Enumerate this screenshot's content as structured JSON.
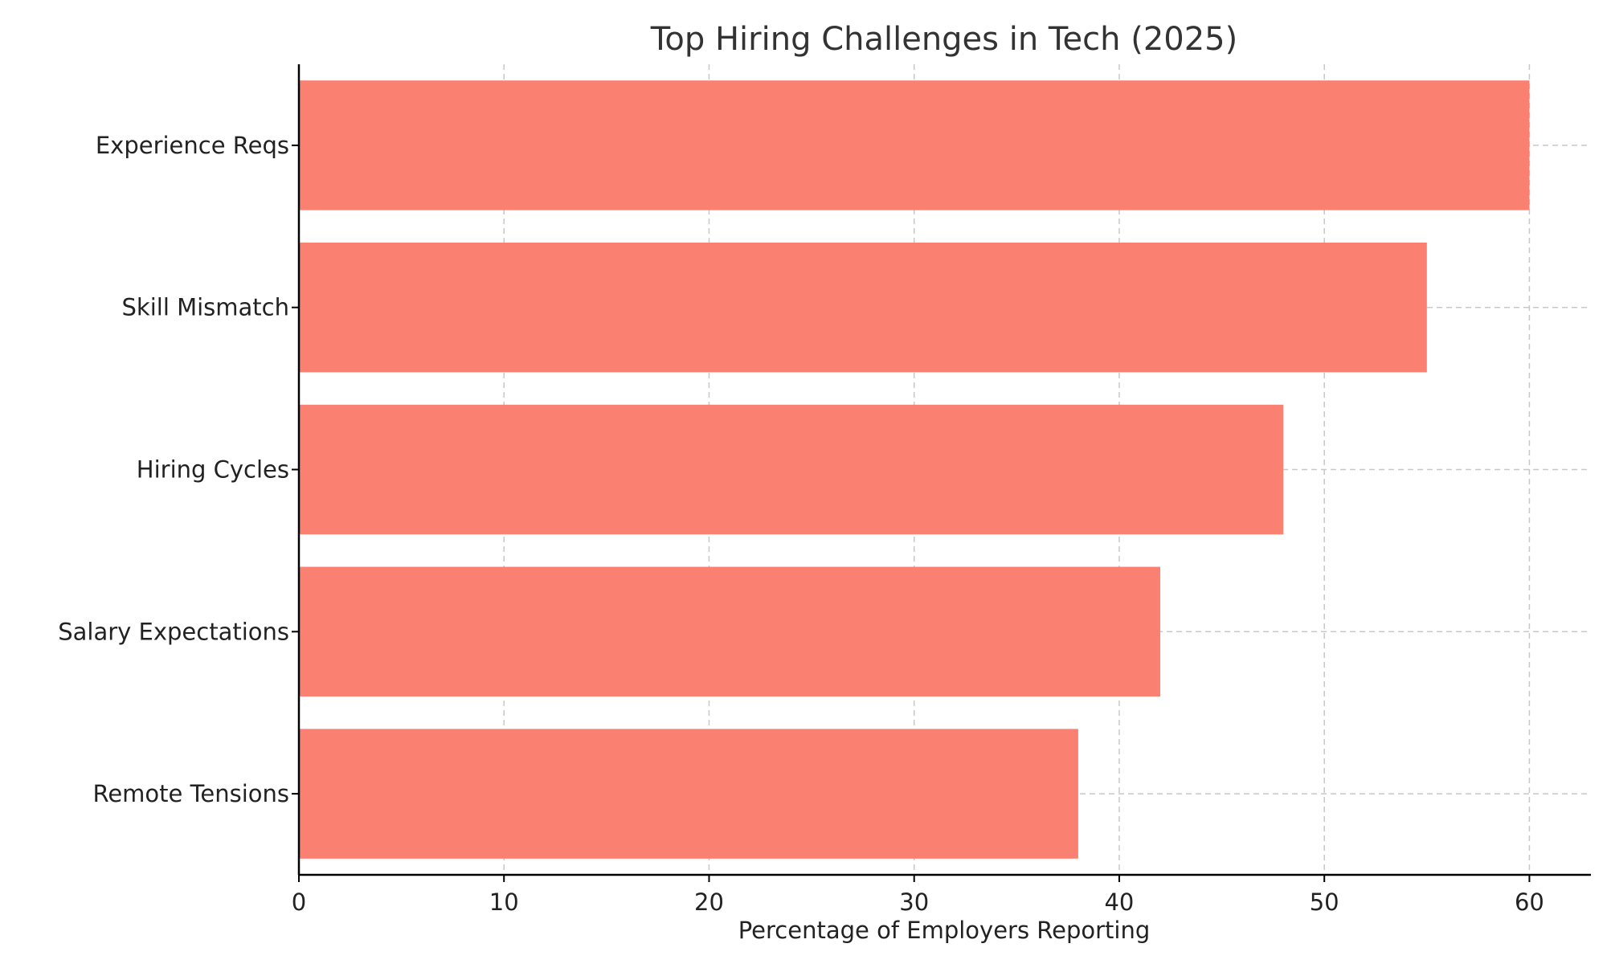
{
  "chart_data": {
    "type": "bar",
    "orientation": "horizontal",
    "title": "Top Hiring Challenges in Tech (2025)",
    "xlabel": "Percentage of Employers Reporting",
    "ylabel": "",
    "categories": [
      "Experience Reqs",
      "Skill Mismatch",
      "Hiring Cycles",
      "Salary Expectations",
      "Remote Tensions"
    ],
    "values": [
      60,
      55,
      48,
      42,
      38
    ],
    "xlim": [
      0,
      63
    ],
    "xticks": [
      0,
      10,
      20,
      30,
      40,
      50,
      60
    ],
    "grid": true,
    "bar_color": "#fa8072"
  }
}
